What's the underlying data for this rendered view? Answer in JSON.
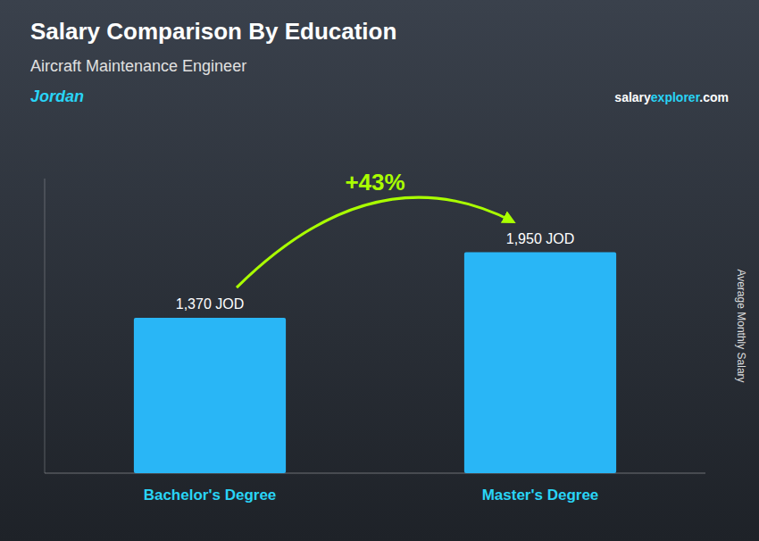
{
  "chart_data": {
    "type": "bar",
    "title": "Salary Comparison By Education",
    "subtitle": "Aircraft Maintenance Engineer",
    "ylabel": "Average Monthly Salary",
    "categories": [
      "Bachelor's Degree",
      "Master's Degree"
    ],
    "values": [
      1370,
      1950
    ],
    "value_labels": [
      "1,370 JOD",
      "1,950 JOD"
    ],
    "data_labels": true,
    "color": "#29b6f6",
    "ylim": [
      0,
      2600
    ],
    "tick_labels": "x",
    "title_color": "#ffffff",
    "subtitle_color": "#e0e0e0",
    "label_color": "#ffffff",
    "xticklabel_color": "#29d4f6",
    "annotations": [
      {
        "text": "Jordan",
        "color": "#29d4f6"
      },
      {
        "text": "+43%",
        "color": "#aaff00"
      }
    ],
    "watermark": [
      {
        "text": "salary",
        "color": "#ffffff"
      },
      {
        "text": "explorer",
        "color": "#29d4f6"
      },
      {
        "text": ".com",
        "color": "#ffffff"
      }
    ]
  }
}
